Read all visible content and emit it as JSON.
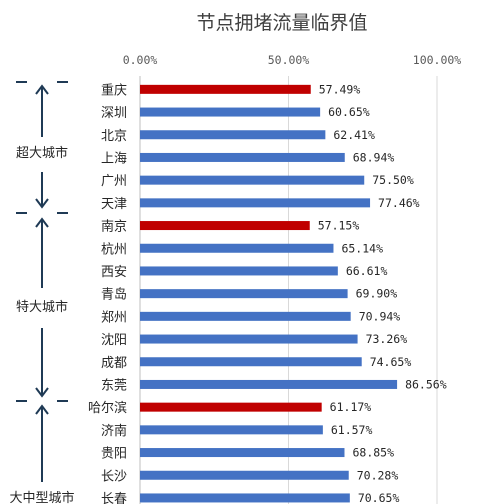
{
  "chart_data": {
    "type": "bar",
    "orientation": "horizontal",
    "title": "节点拥堵流量临界值",
    "xlim": [
      0,
      100
    ],
    "x_ticks": [
      "0.00%",
      "50.00%",
      "100.00%"
    ],
    "grid": true,
    "categories": [
      "重庆",
      "深圳",
      "北京",
      "上海",
      "广州",
      "天津",
      "南京",
      "杭州",
      "西安",
      "青岛",
      "郑州",
      "沈阳",
      "成都",
      "东莞",
      "哈尔滨",
      "济南",
      "贵阳",
      "长沙",
      "长春"
    ],
    "values": [
      57.49,
      60.65,
      62.41,
      68.94,
      75.5,
      77.46,
      57.15,
      65.14,
      66.61,
      69.9,
      70.94,
      73.26,
      74.65,
      86.56,
      61.17,
      61.57,
      68.85,
      70.28,
      70.65
    ],
    "data_labels": [
      "57.49%",
      "60.65%",
      "62.41%",
      "68.94%",
      "75.50%",
      "77.46%",
      "57.15%",
      "65.14%",
      "66.61%",
      "69.90%",
      "70.94%",
      "73.26%",
      "74.65%",
      "86.56%",
      "61.17%",
      "61.57%",
      "68.85%",
      "70.28%",
      "70.65%"
    ],
    "highlighted": [
      "重庆",
      "南京",
      "哈尔滨"
    ],
    "groups": [
      {
        "label": "超大城市",
        "cities": [
          "重庆",
          "深圳",
          "北京",
          "上海",
          "广州",
          "天津"
        ]
      },
      {
        "label": "特大城市",
        "cities": [
          "南京",
          "杭州",
          "西安",
          "青岛",
          "郑州",
          "沈阳",
          "成都",
          "东莞"
        ]
      },
      {
        "label": "大中型城市",
        "cities": [
          "哈尔滨",
          "济南",
          "贵阳",
          "长沙",
          "长春"
        ]
      }
    ],
    "colors": {
      "bar": "#4472c4",
      "highlight": "#c00000",
      "bracket": "#1f3a55"
    }
  }
}
